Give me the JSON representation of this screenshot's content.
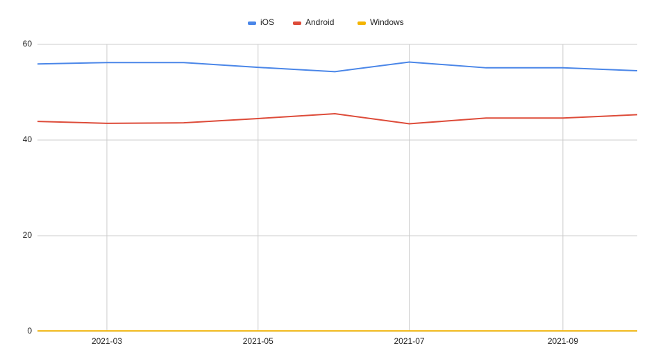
{
  "chart_data": {
    "type": "line",
    "x": [
      "2021-02",
      "2021-03",
      "2021-04",
      "2021-05",
      "2021-06",
      "2021-07",
      "2021-08",
      "2021-09",
      "2021-10"
    ],
    "series": [
      {
        "name": "iOS",
        "color": "#4a86e8",
        "values": [
          55.9,
          56.2,
          56.2,
          55.2,
          54.3,
          56.3,
          55.1,
          55.1,
          54.5
        ]
      },
      {
        "name": "Android",
        "color": "#dd4b39",
        "values": [
          43.9,
          43.5,
          43.6,
          44.5,
          45.5,
          43.4,
          44.6,
          44.6,
          45.3
        ]
      },
      {
        "name": "Windows",
        "color": "#f4b400",
        "values": [
          0.1,
          0.1,
          0.1,
          0.1,
          0.1,
          0.1,
          0.1,
          0.1,
          0.1
        ]
      }
    ],
    "xlim": [
      "2021-02",
      "2021-10"
    ],
    "xticks": [
      "2021-03",
      "2021-05",
      "2021-07",
      "2021-09"
    ],
    "ylim": [
      0,
      60
    ],
    "yticks": [
      0,
      20,
      40,
      60
    ],
    "grid": true,
    "legend": "top"
  }
}
